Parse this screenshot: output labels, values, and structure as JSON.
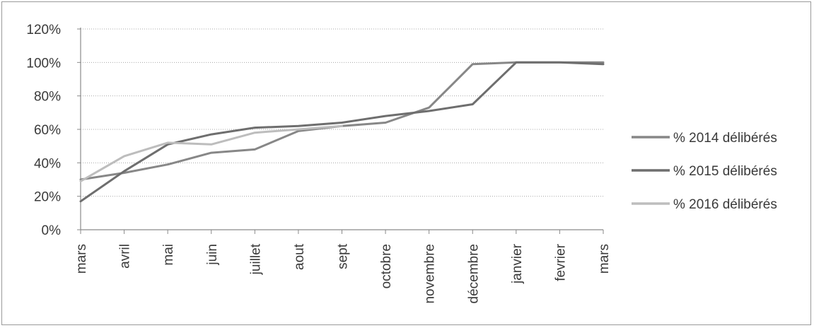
{
  "chart_data": {
    "type": "line",
    "title": "",
    "xlabel": "",
    "ylabel": "",
    "categories": [
      "mars",
      "avril",
      "mai",
      "juin",
      "juillet",
      "aout",
      "sept",
      "octobre",
      "novembre",
      "décembre",
      "janvier",
      "fevrier",
      "mars"
    ],
    "ylim": [
      0,
      1.2
    ],
    "y_ticks": [
      0,
      0.2,
      0.4,
      0.6,
      0.8,
      1.0,
      1.2
    ],
    "y_tick_labels": [
      "0%",
      "20%",
      "40%",
      "60%",
      "80%",
      "100%",
      "120%"
    ],
    "grid": true,
    "legend_position": "right",
    "series": [
      {
        "name": "% 2014 délibérés",
        "color": "#878787",
        "values": [
          0.3,
          0.34,
          0.39,
          0.46,
          0.48,
          0.59,
          0.62,
          0.64,
          0.73,
          0.99,
          1.0,
          1.0,
          1.0
        ]
      },
      {
        "name": "% 2015 délibérés",
        "color": "#6e6e6e",
        "values": [
          0.17,
          0.35,
          0.51,
          0.57,
          0.61,
          0.62,
          0.64,
          0.68,
          0.71,
          0.75,
          1.0,
          1.0,
          0.99
        ]
      },
      {
        "name": "% 2016 délibérés",
        "color": "#bdbdbd",
        "values": [
          0.29,
          0.44,
          0.52,
          0.51,
          0.58,
          0.6,
          0.62,
          null,
          null,
          null,
          null,
          null,
          null
        ]
      }
    ]
  }
}
